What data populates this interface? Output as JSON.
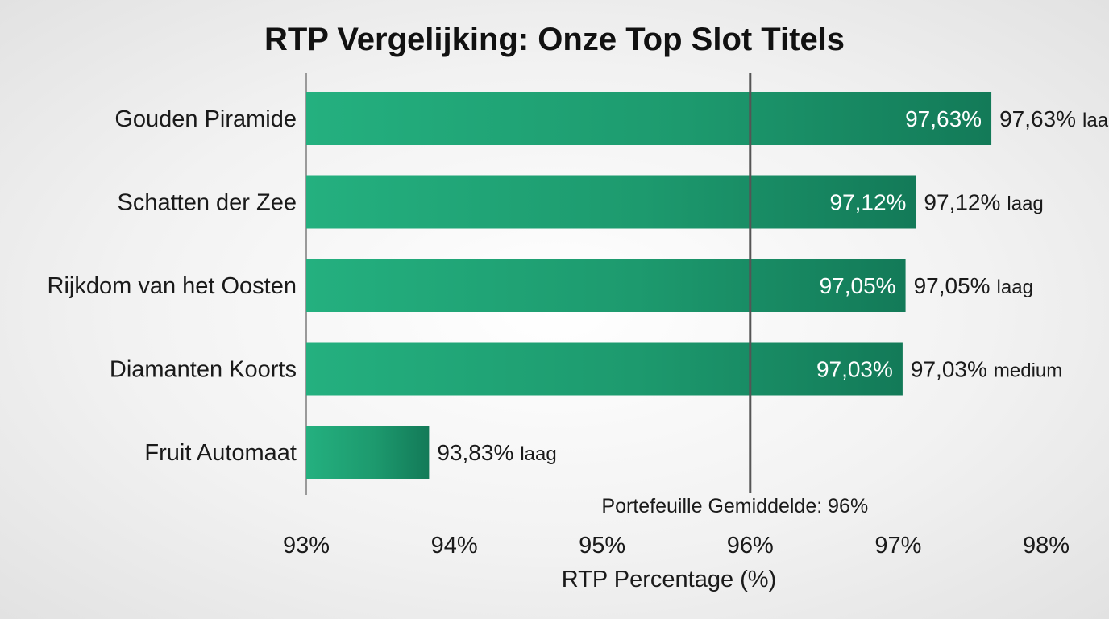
{
  "chart_data": {
    "type": "bar",
    "orientation": "horizontal",
    "title": "RTP Vergelijking: Onze Top Slot Titels",
    "xlabel": "RTP Percentage (%)",
    "ylabel": "",
    "xlim": [
      93,
      98
    ],
    "ticks": [
      93,
      94,
      95,
      96,
      97,
      98
    ],
    "tick_labels": [
      "93%",
      "94%",
      "95%",
      "96%",
      "97%",
      "98%"
    ],
    "categories": [
      "Gouden Piramide",
      "Schatten der Zee",
      "Rijkdom van het Oosten",
      "Diamanten Koorts",
      "Fruit Automaat"
    ],
    "values": [
      97.63,
      97.12,
      97.05,
      97.03,
      93.83
    ],
    "bar_labels": [
      "97,63%",
      "97,12%",
      "97,05%",
      "97,03%",
      ""
    ],
    "value_labels": [
      "97,63%",
      "97,12%",
      "97,05%",
      "97,03%",
      "93,83%"
    ],
    "volatility": [
      "laag",
      "laag",
      "laag",
      "medium",
      "laag"
    ],
    "reference_line": {
      "value": 96,
      "label": "Portefeuille Gemiddelde: 96%"
    },
    "colors": {
      "bar_light": "#24b07f",
      "bar_dark": "#137a58",
      "reference_line": "#555555"
    },
    "grid": false,
    "legend": "none"
  }
}
